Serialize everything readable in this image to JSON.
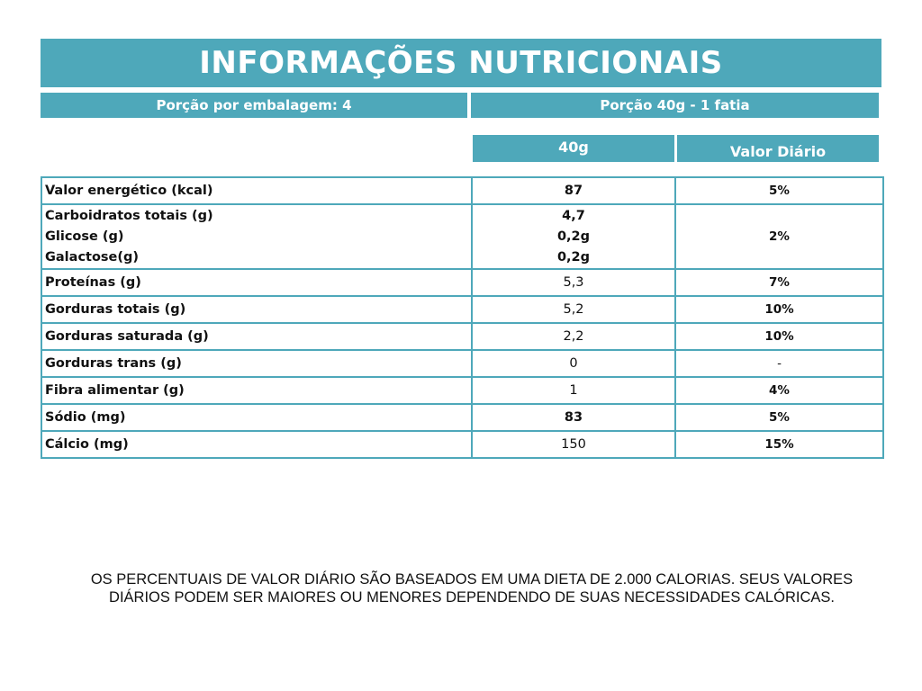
{
  "title": "INFORMAÇÕES NUTRICIONAIS",
  "serving": {
    "per_package": "Porção por embalagem: 4",
    "portion": "Porção 40g - 1 fatia"
  },
  "columns": {
    "amount": "40g",
    "daily_value": "Valor Diário"
  },
  "rows": [
    {
      "label": "Valor energético (kcal)",
      "value": "87",
      "dv": "5%"
    },
    {
      "labels": [
        "Carboidratos totais (g)",
        "Glicose (g)",
        "Galactose(g)"
      ],
      "values": [
        "4,7",
        "0,2g",
        "0,2g"
      ],
      "dv": "2%"
    },
    {
      "label": "Proteínas (g)",
      "value": "5,3",
      "dv": "7%"
    },
    {
      "label": "Gorduras totais (g)",
      "value": "5,2",
      "dv": "10%"
    },
    {
      "label": "Gorduras saturada (g)",
      "value": "2,2",
      "dv": "10%"
    },
    {
      "label": "Gorduras trans (g)",
      "value": "0",
      "dv": "-"
    },
    {
      "label": "Fibra alimentar (g)",
      "value": "1",
      "dv": "4%"
    },
    {
      "label": "Sódio (mg)",
      "value": "83",
      "dv": "5%"
    },
    {
      "label": "Cálcio (mg)",
      "value": "150",
      "dv": "15%"
    }
  ],
  "footnote": "OS PERCENTUAIS DE VALOR DIÁRIO SÃO BASEADOS EM UMA DIETA DE 2.000 CALORIAS. SEUS VALORES DIÁRIOS PODEM SER MAIORES OU MENORES DEPENDENDO DE SUAS NECESSIDADES CALÓRICAS.",
  "colors": {
    "accent": "#4ea8ba"
  }
}
